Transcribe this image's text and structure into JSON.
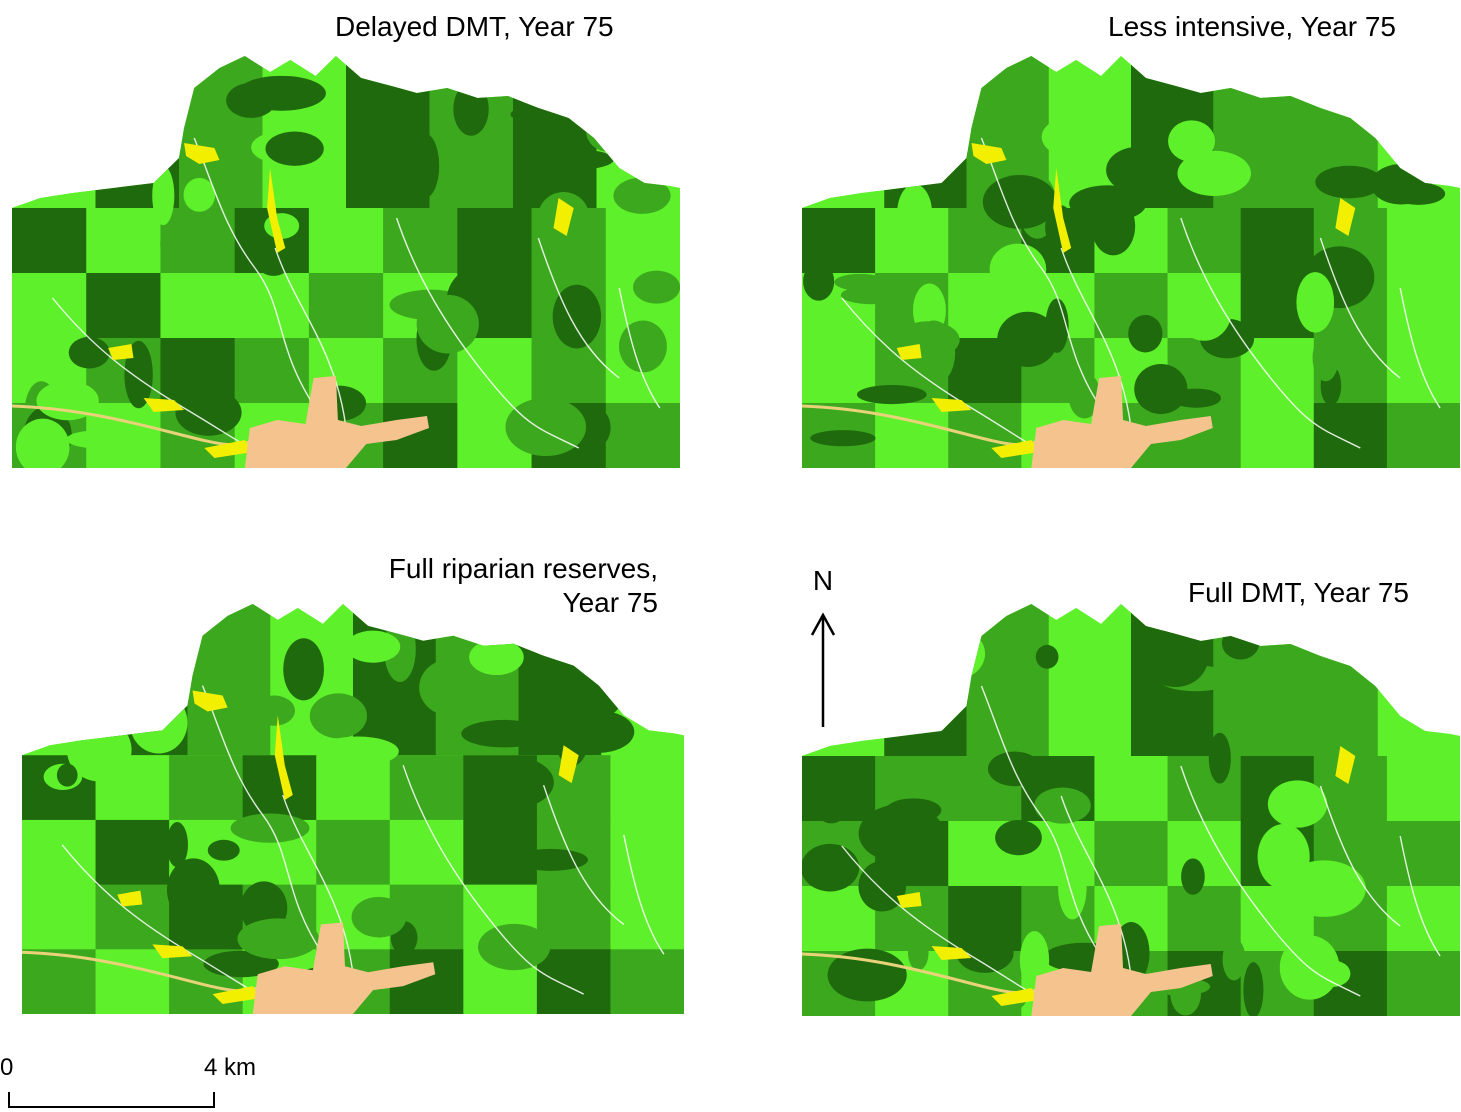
{
  "panels": [
    {
      "title": "Delayed DMT, Year 75"
    },
    {
      "title": "Less intensive, Year 75"
    },
    {
      "title_line1": "Full riparian reserves,",
      "title_line2": "Year 75"
    },
    {
      "title": "Full DMT, Year 75"
    }
  ],
  "north_arrow": {
    "label": "N"
  },
  "scale_bar": {
    "start_label": "0",
    "end_label": "4 km"
  },
  "colors": {
    "bright_green": "#5ef02a",
    "medium_green": "#3ca81e",
    "dark_green": "#1f6a0d",
    "yellow": "#f2ef00",
    "tan": "#f5c38e",
    "white": "#ffffff"
  },
  "map_pattern": {
    "north_section_row": [
      "bright",
      "dark",
      "medium",
      "bright",
      "dark",
      "medium",
      "dark",
      "bright"
    ],
    "grid": [
      [
        "dark",
        "bright",
        "medium",
        "dark",
        "bright",
        "medium",
        "dark",
        "medium",
        "bright"
      ],
      [
        "bright",
        "dark",
        "bright",
        "bright",
        "medium",
        "bright",
        "dark",
        "medium",
        "bright"
      ],
      [
        "bright",
        "medium",
        "dark",
        "medium",
        "bright",
        "medium",
        "bright",
        "medium",
        "bright"
      ],
      [
        "medium",
        "bright",
        "medium",
        "bright",
        "medium",
        "dark",
        "bright",
        "dark",
        "medium"
      ]
    ]
  }
}
